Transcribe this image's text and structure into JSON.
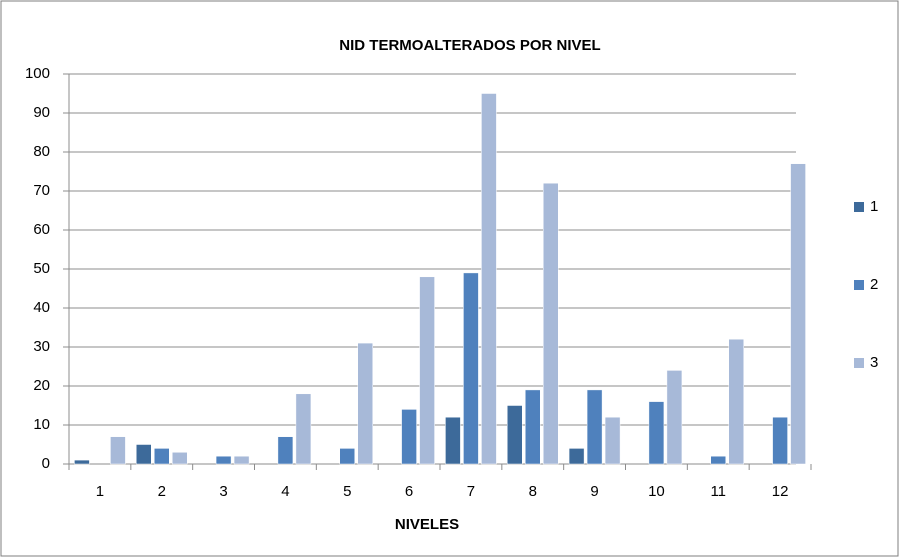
{
  "chart_data": {
    "type": "bar",
    "title": "NID TERMOALTERADOS POR NIVEL",
    "x_label": "NIVELES",
    "categories": [
      "1",
      "2",
      "3",
      "4",
      "5",
      "6",
      "7",
      "8",
      "9",
      "10",
      "11",
      "12"
    ],
    "series": [
      {
        "name": "1",
        "color": "#3d6a9a",
        "values": [
          1,
          5,
          0,
          0,
          0,
          0,
          12,
          15,
          4,
          0,
          0,
          0
        ]
      },
      {
        "name": "2",
        "color": "#4f81bd",
        "values": [
          0,
          4,
          2,
          7,
          4,
          14,
          49,
          19,
          19,
          16,
          2,
          12
        ]
      },
      {
        "name": "3",
        "color": "#a7b9d8",
        "values": [
          7,
          3,
          2,
          18,
          31,
          48,
          95,
          72,
          12,
          24,
          32,
          77
        ]
      }
    ],
    "ylim": [
      0,
      100
    ],
    "yticks": [
      0,
      10,
      20,
      30,
      40,
      50,
      60,
      70,
      80,
      90,
      100
    ],
    "grid": true,
    "legend": "right"
  }
}
